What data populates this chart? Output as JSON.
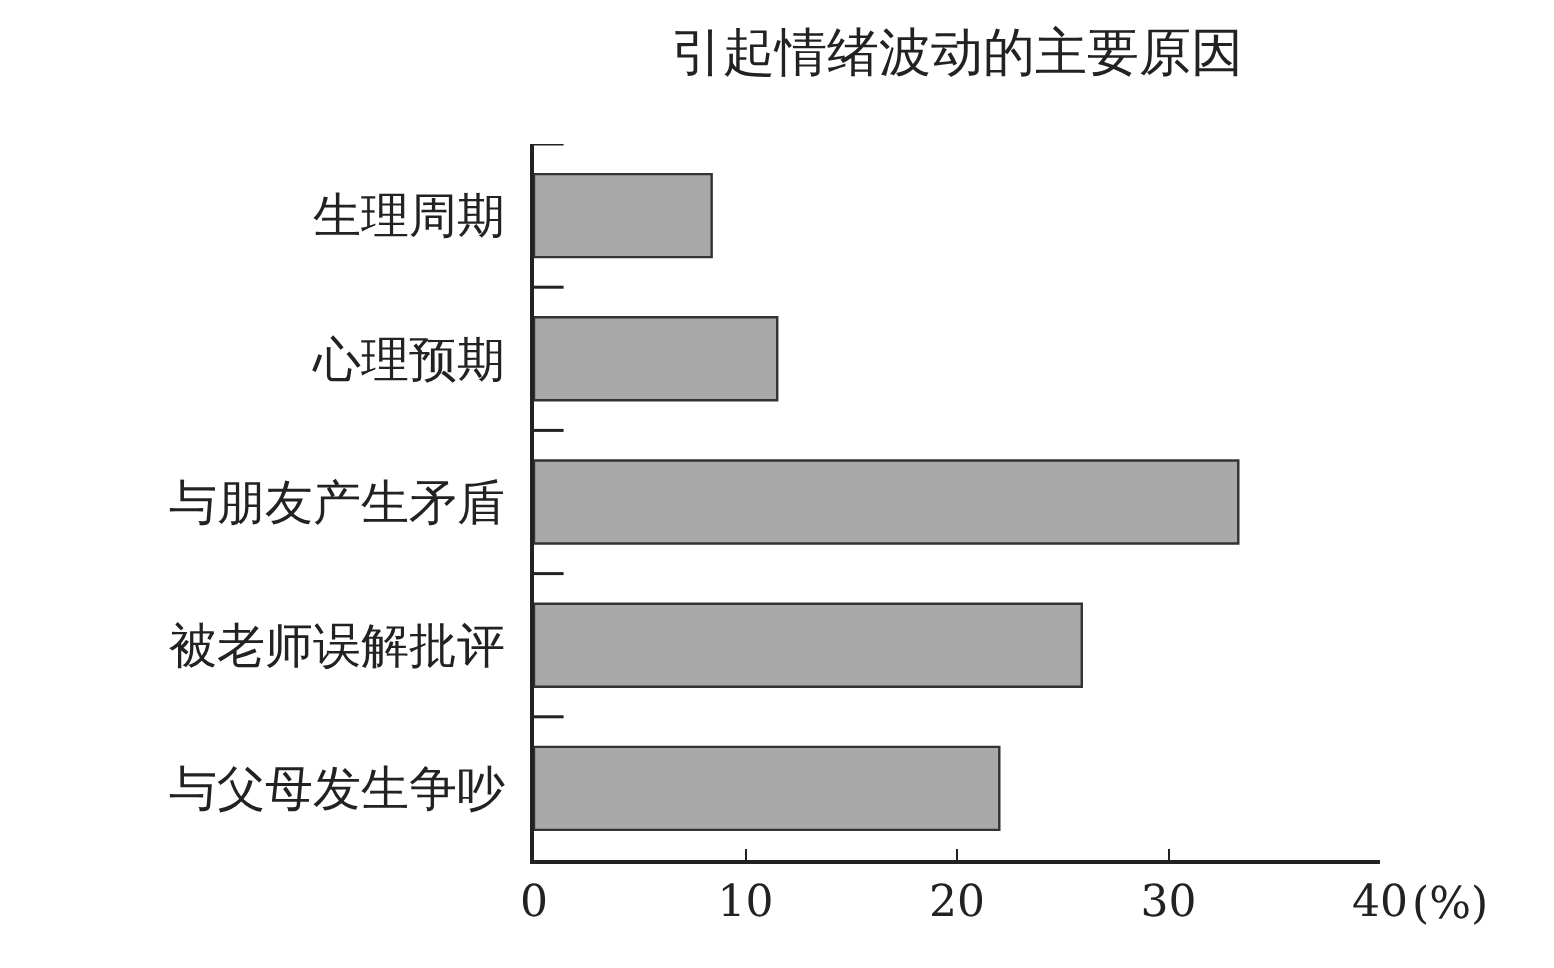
{
  "chart_data": {
    "type": "bar",
    "orientation": "horizontal",
    "title": "引起情绪波动的主要原因",
    "xlabel": "(%)",
    "categories": [
      "生理周期",
      "心理预期",
      "与朋友产生矛盾",
      "被老师误解批评",
      "与父母发生争吵"
    ],
    "values": [
      8.4,
      11.5,
      33.3,
      25.9,
      22.0
    ],
    "color": "#a9a9a9",
    "xlim": [
      0,
      40
    ],
    "xticks": [
      0,
      10,
      20,
      30,
      40
    ]
  }
}
